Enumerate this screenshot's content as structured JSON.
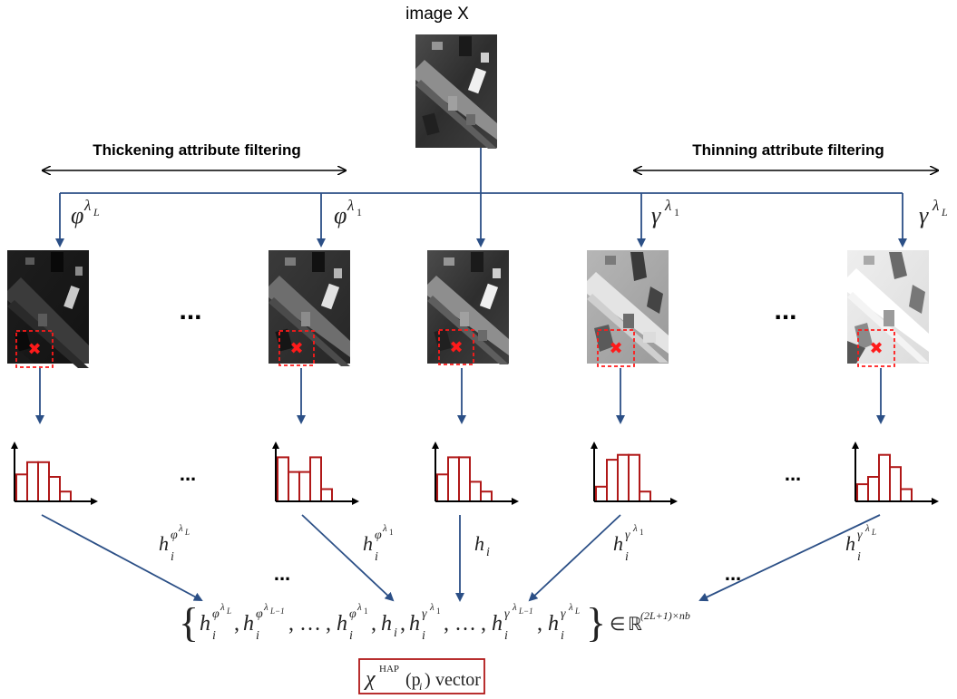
{
  "title": "image X",
  "left_range_label": "Thickening attribute filtering",
  "right_range_label": "Thinning attribute filtering",
  "filter_labels": {
    "thick_L": {
      "base": "φ",
      "sup": "λ",
      "sub": "L"
    },
    "thick_1": {
      "base": "φ",
      "sup": "λ",
      "sub": "1"
    },
    "thin_1": {
      "base": "γ",
      "sup": "λ",
      "sub": "1"
    },
    "thin_L": {
      "base": "γ",
      "sup": "λ",
      "sub": "L"
    }
  },
  "ellipsis": "...",
  "histogram_labels": {
    "thick_L": {
      "base": "h",
      "sub": "i",
      "sup": "φ",
      "supsup": "λ",
      "supsupsub": "L"
    },
    "thick_1": {
      "base": "h",
      "sub": "i",
      "sup": "φ",
      "supsup": "λ",
      "supsupsub": "1"
    },
    "orig": {
      "base": "h",
      "sub": "i"
    },
    "thin_1": {
      "base": "h",
      "sub": "i",
      "sup": "γ",
      "supsup": "λ",
      "supsupsub": "1"
    },
    "thin_L": {
      "base": "h",
      "sub": "i",
      "sup": "γ",
      "supsup": "λ",
      "supsupsub": "L"
    }
  },
  "set_expression": {
    "open_brace": "{",
    "close_brace": "}",
    "comma": ",",
    "dots": "…",
    "thick_Lm1_sub": "L−1",
    "thin_Lm1_sub": "L−1",
    "in_symbol": "∈",
    "space": "ℝ",
    "space_exponent": "(2L+1)×nb"
  },
  "vector_label": {
    "chi": "χ",
    "superscript": "HAP",
    "arg": "(p",
    "arg_sub": "i",
    "arg_close": ")",
    "word": "vector"
  },
  "colors": {
    "arrow": "#2b4f86",
    "histogram": "#b01818",
    "marker": "#ff1a1a",
    "vector_box": "#b01818"
  },
  "histograms": [
    {
      "name": "thick_L",
      "values": [
        0.55,
        0.8,
        0.8,
        0.5,
        0.2
      ]
    },
    {
      "name": "thick_1",
      "values": [
        0.9,
        0.6,
        0.6,
        0.9,
        0.25
      ]
    },
    {
      "name": "orig",
      "values": [
        0.55,
        0.9,
        0.9,
        0.4,
        0.2
      ]
    },
    {
      "name": "thin_1",
      "values": [
        0.3,
        0.85,
        0.95,
        0.95,
        0.2
      ]
    },
    {
      "name": "thin_L",
      "values": [
        0.35,
        0.5,
        0.95,
        0.7,
        0.25
      ]
    }
  ]
}
